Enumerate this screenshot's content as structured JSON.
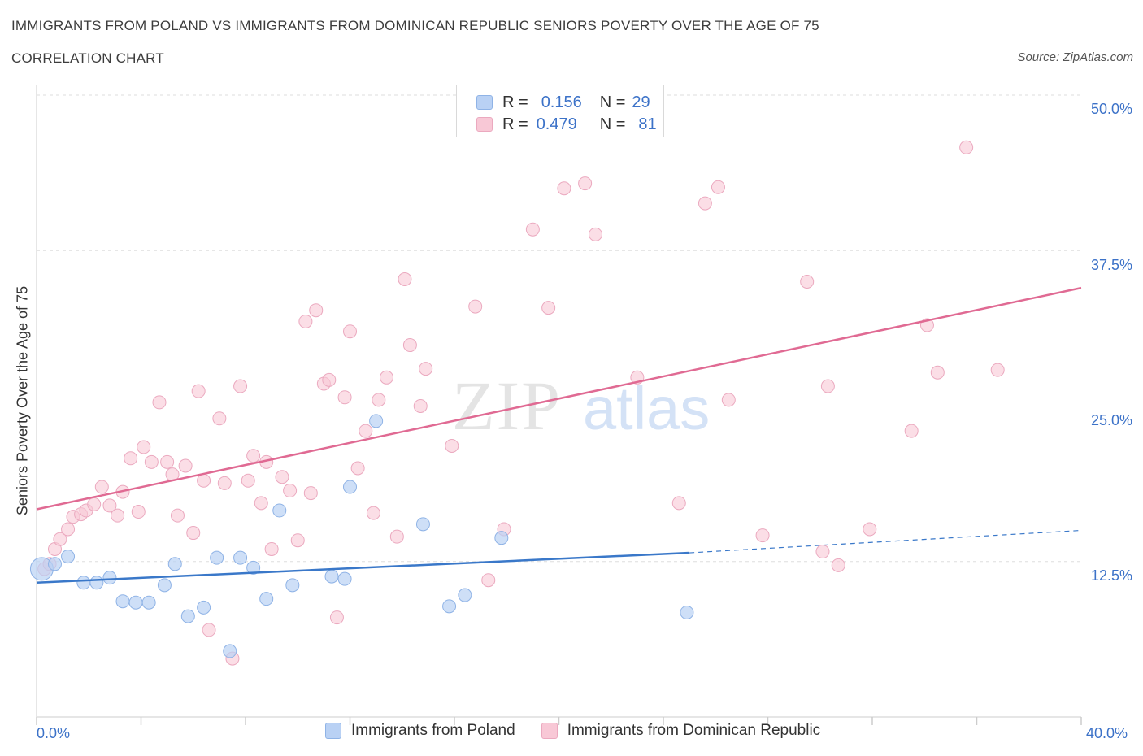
{
  "header": {
    "title": "IMMIGRANTS FROM POLAND VS IMMIGRANTS FROM DOMINICAN REPUBLIC SENIORS POVERTY OVER THE AGE OF 75",
    "subtitle": "CORRELATION CHART",
    "source": "Source: ZipAtlas.com"
  },
  "watermark": {
    "zip": "ZIP",
    "atlas": "atlas"
  },
  "legend_top": {
    "r_label": "R =",
    "n_label": "N =",
    "series": [
      {
        "r": "0.156",
        "n": "29"
      },
      {
        "r": "0.479",
        "n": "81"
      }
    ]
  },
  "legend_bottom": [
    "Immigrants from Poland",
    "Immigrants from Dominican Republic"
  ],
  "colors": {
    "blue_fill": "#b9d1f4",
    "blue_stroke": "#8fb3e6",
    "blue_line": "#3a78c9",
    "pink_fill": "#f8c8d6",
    "pink_stroke": "#eba9bf",
    "pink_line": "#e06a93",
    "tick_text": "#3c72c8",
    "grid": "#dddddd"
  },
  "chart_data": {
    "type": "scatter",
    "title": "IMMIGRANTS FROM POLAND VS IMMIGRANTS FROM DOMINICAN REPUBLIC SENIORS POVERTY OVER THE AGE OF 75",
    "xlabel": "",
    "ylabel": "Seniors Poverty Over the Age of 75",
    "xlim": [
      0,
      40
    ],
    "ylim": [
      0,
      50
    ],
    "x_tick_labels": [
      "0.0%",
      "40.0%"
    ],
    "y_ticks": [
      12.5,
      25,
      37.5,
      50
    ],
    "y_tick_labels": [
      "12.5%",
      "25.0%",
      "37.5%",
      "50.0%"
    ],
    "grid": true,
    "legend_position": "top-center",
    "series": [
      {
        "name": "Immigrants from Poland",
        "color": "#b9d1f4",
        "R": 0.156,
        "N": 29,
        "trend": {
          "x": [
            0,
            25
          ],
          "y": [
            10.8,
            13.2
          ],
          "dashed_to": [
            40,
            15.0
          ]
        },
        "points": [
          [
            0.2,
            11.9
          ],
          [
            0.7,
            12.3
          ],
          [
            1.2,
            12.9
          ],
          [
            1.8,
            10.8
          ],
          [
            2.3,
            10.8
          ],
          [
            2.8,
            11.2
          ],
          [
            3.3,
            9.3
          ],
          [
            3.8,
            9.2
          ],
          [
            4.3,
            9.2
          ],
          [
            4.9,
            10.6
          ],
          [
            5.3,
            12.3
          ],
          [
            5.8,
            8.1
          ],
          [
            6.4,
            8.8
          ],
          [
            6.9,
            12.8
          ],
          [
            7.4,
            5.3
          ],
          [
            7.8,
            12.8
          ],
          [
            8.3,
            12.0
          ],
          [
            8.8,
            9.5
          ],
          [
            9.3,
            16.6
          ],
          [
            9.8,
            10.6
          ],
          [
            11.3,
            11.3
          ],
          [
            11.8,
            11.1
          ],
          [
            12.0,
            18.5
          ],
          [
            13.0,
            23.8
          ],
          [
            14.8,
            15.5
          ],
          [
            15.8,
            8.9
          ],
          [
            16.4,
            9.8
          ],
          [
            17.8,
            14.4
          ],
          [
            24.9,
            8.4
          ]
        ]
      },
      {
        "name": "Immigrants from Dominican Republic",
        "color": "#f8c8d6",
        "R": 0.479,
        "N": 81,
        "trend": {
          "x": [
            0,
            40
          ],
          "y": [
            16.7,
            34.5
          ]
        },
        "points": [
          [
            0.3,
            11.9
          ],
          [
            0.5,
            12.3
          ],
          [
            0.7,
            13.5
          ],
          [
            0.9,
            14.3
          ],
          [
            1.2,
            15.1
          ],
          [
            1.4,
            16.1
          ],
          [
            1.7,
            16.3
          ],
          [
            1.9,
            16.6
          ],
          [
            2.2,
            17.1
          ],
          [
            2.5,
            18.5
          ],
          [
            2.8,
            17.0
          ],
          [
            3.1,
            16.2
          ],
          [
            3.3,
            18.1
          ],
          [
            3.6,
            20.8
          ],
          [
            3.9,
            16.5
          ],
          [
            4.1,
            21.7
          ],
          [
            4.4,
            20.5
          ],
          [
            4.7,
            25.3
          ],
          [
            5.0,
            20.5
          ],
          [
            5.2,
            19.5
          ],
          [
            5.4,
            16.2
          ],
          [
            5.7,
            20.2
          ],
          [
            6.0,
            14.8
          ],
          [
            6.2,
            26.2
          ],
          [
            6.4,
            19.0
          ],
          [
            6.6,
            7.0
          ],
          [
            7.0,
            24.0
          ],
          [
            7.2,
            18.8
          ],
          [
            7.5,
            4.7
          ],
          [
            7.8,
            26.6
          ],
          [
            8.1,
            19.0
          ],
          [
            8.3,
            21.0
          ],
          [
            8.6,
            17.2
          ],
          [
            8.8,
            20.5
          ],
          [
            9.0,
            13.5
          ],
          [
            9.4,
            19.3
          ],
          [
            9.7,
            18.2
          ],
          [
            10.0,
            14.2
          ],
          [
            10.3,
            31.8
          ],
          [
            10.5,
            18.0
          ],
          [
            10.7,
            32.7
          ],
          [
            11.0,
            26.8
          ],
          [
            11.2,
            27.1
          ],
          [
            11.5,
            8.0
          ],
          [
            11.8,
            25.7
          ],
          [
            12.0,
            31.0
          ],
          [
            12.3,
            20.0
          ],
          [
            12.6,
            23.0
          ],
          [
            12.9,
            16.4
          ],
          [
            13.1,
            25.5
          ],
          [
            13.4,
            27.3
          ],
          [
            13.8,
            14.5
          ],
          [
            14.1,
            35.2
          ],
          [
            14.3,
            29.9
          ],
          [
            14.7,
            25.0
          ],
          [
            14.9,
            28.0
          ],
          [
            15.9,
            21.8
          ],
          [
            16.8,
            33.0
          ],
          [
            17.3,
            11.0
          ],
          [
            17.9,
            15.1
          ],
          [
            19.0,
            39.2
          ],
          [
            19.6,
            32.9
          ],
          [
            20.2,
            42.5
          ],
          [
            21.0,
            42.9
          ],
          [
            21.4,
            38.8
          ],
          [
            23.0,
            27.3
          ],
          [
            24.6,
            17.2
          ],
          [
            25.6,
            41.3
          ],
          [
            26.1,
            42.6
          ],
          [
            26.5,
            25.5
          ],
          [
            27.8,
            14.6
          ],
          [
            29.5,
            35.0
          ],
          [
            30.1,
            13.3
          ],
          [
            30.3,
            26.6
          ],
          [
            30.7,
            12.2
          ],
          [
            31.9,
            15.1
          ],
          [
            33.5,
            23.0
          ],
          [
            34.1,
            31.5
          ],
          [
            34.5,
            27.7
          ],
          [
            35.6,
            45.8
          ],
          [
            36.8,
            27.9
          ]
        ]
      }
    ]
  }
}
